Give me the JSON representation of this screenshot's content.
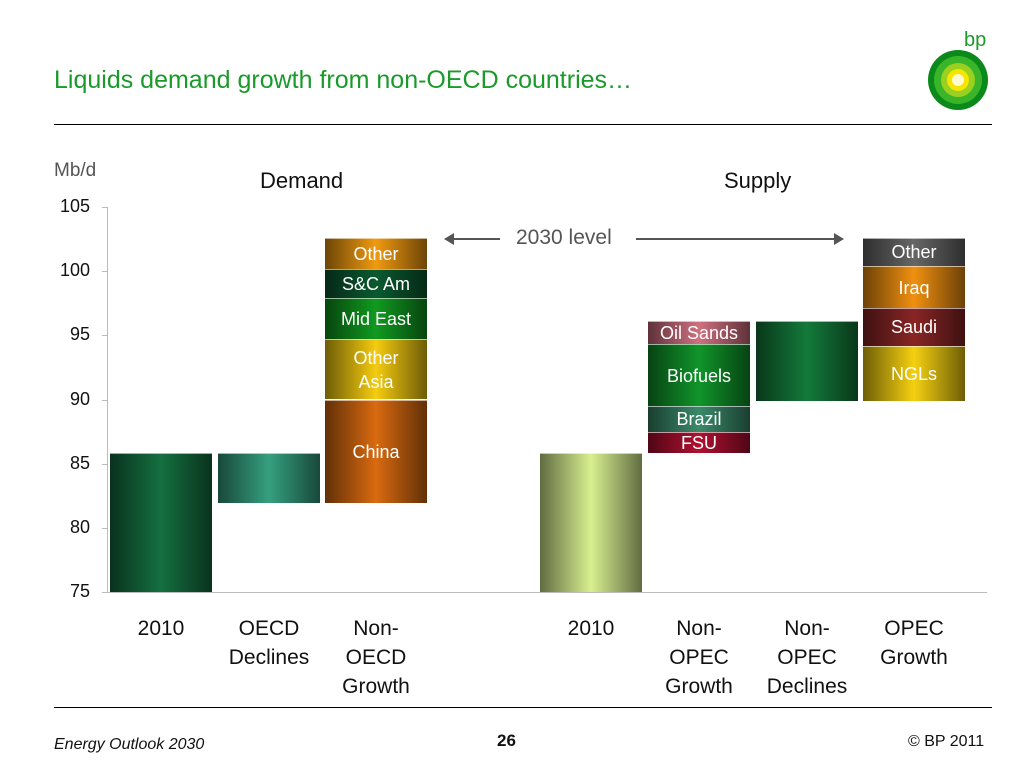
{
  "header": {
    "title": "Liquids demand growth from non-OECD countries…",
    "logo_text": "bp"
  },
  "footer": {
    "left": "Energy Outlook 2030",
    "page": "26",
    "right": "© BP 2011"
  },
  "chart_data": {
    "type": "bar",
    "subtype": "waterfall",
    "ylabel": "Mb/d",
    "ylim": [
      75,
      105
    ],
    "yticks": [
      75,
      80,
      85,
      90,
      95,
      100,
      105
    ],
    "groups": [
      {
        "title": "Demand"
      },
      {
        "title": "Supply"
      }
    ],
    "annotation": "2030 level",
    "categories": [
      {
        "label": "2010",
        "group": 0,
        "segments": [
          {
            "label": "",
            "from": 75,
            "to": 85.8,
            "color": "#157040"
          }
        ]
      },
      {
        "label": "OECD\nDeclines",
        "group": 0,
        "segments": [
          {
            "label": "",
            "from": 81.9,
            "to": 85.8,
            "color": "#35a07e"
          }
        ]
      },
      {
        "label": "Non-\nOECD\nGrowth",
        "group": 0,
        "segments": [
          {
            "label": "China",
            "from": 81.9,
            "to": 90.0,
            "color": "#d96a10"
          },
          {
            "label": "Other\nAsia",
            "from": 90.0,
            "to": 94.7,
            "color": "#f5cc10"
          },
          {
            "label": "Mid East",
            "from": 94.7,
            "to": 97.9,
            "color": "#109a20"
          },
          {
            "label": "S&C Am",
            "from": 97.9,
            "to": 100.2,
            "color": "#0a5a30"
          },
          {
            "label": "Other",
            "from": 100.2,
            "to": 102.6,
            "color": "#f09a10"
          }
        ]
      },
      {
        "label": "2010",
        "group": 1,
        "segments": [
          {
            "label": "",
            "from": 75,
            "to": 85.8,
            "color": "#d8f090"
          }
        ]
      },
      {
        "label": "Non-\nOPEC\nGrowth",
        "group": 1,
        "segments": [
          {
            "label": "FSU",
            "from": 85.8,
            "to": 87.5,
            "color": "#b01030"
          },
          {
            "label": "Brazil",
            "from": 87.5,
            "to": 89.5,
            "color": "#3a8a6a"
          },
          {
            "label": "Biofuels",
            "from": 89.5,
            "to": 94.3,
            "color": "#10952a"
          },
          {
            "label": "Oil Sands",
            "from": 94.3,
            "to": 96.1,
            "color": "#d07080"
          }
        ]
      },
      {
        "label": "Non-\nOPEC\nDeclines",
        "group": 1,
        "segments": [
          {
            "label": "",
            "from": 89.9,
            "to": 96.1,
            "color": "#137a3a"
          }
        ]
      },
      {
        "label": "OPEC\nGrowth",
        "group": 1,
        "segments": [
          {
            "label": "NGLs",
            "from": 89.9,
            "to": 94.2,
            "color": "#f5d010"
          },
          {
            "label": "Saudi",
            "from": 94.2,
            "to": 97.1,
            "color": "#8a2525"
          },
          {
            "label": "Iraq",
            "from": 97.1,
            "to": 100.4,
            "color": "#f09010"
          },
          {
            "label": "Other",
            "from": 100.4,
            "to": 102.6,
            "color": "#666666"
          }
        ]
      }
    ]
  }
}
